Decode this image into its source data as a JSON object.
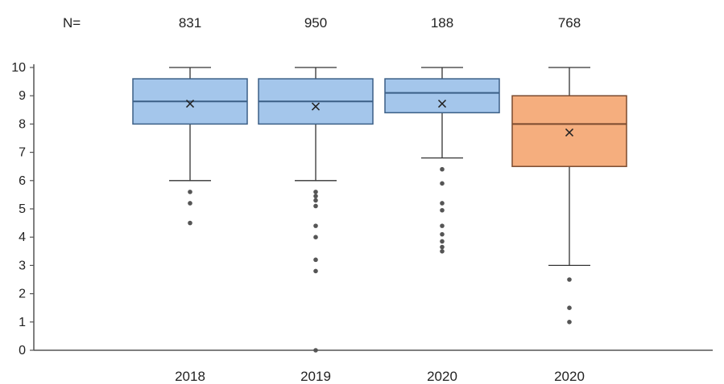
{
  "chart_data": {
    "type": "box",
    "n_prefix": "N=",
    "ylim": [
      0,
      10
    ],
    "yticks": [
      "0",
      "1",
      "2",
      "3",
      "4",
      "5",
      "6",
      "7",
      "8",
      "9",
      "10"
    ],
    "grid": false,
    "categories": [
      "2018",
      "2019",
      "2020",
      "2020"
    ],
    "n_values": [
      "831",
      "950",
      "188",
      "768"
    ],
    "colors": {
      "blue_fill": "#a4c6eb",
      "blue_stroke": "#3b5f86",
      "orange_fill": "#f5ae7e",
      "orange_stroke": "#7a4a2e",
      "axis": "#555555",
      "outlier": "#555555"
    },
    "boxes": [
      {
        "category": "2018",
        "n": 831,
        "whisker_low": 6.0,
        "q1": 8.0,
        "median": 8.8,
        "q3": 9.6,
        "whisker_high": 10.0,
        "mean": 8.72,
        "outliers": [
          5.6,
          5.2,
          4.5
        ],
        "color": "blue"
      },
      {
        "category": "2019",
        "n": 950,
        "whisker_low": 6.0,
        "q1": 8.0,
        "median": 8.8,
        "q3": 9.6,
        "whisker_high": 10.0,
        "mean": 8.62,
        "outliers": [
          5.6,
          5.45,
          5.3,
          5.1,
          4.4,
          4.0,
          3.2,
          2.8,
          0.0
        ],
        "color": "blue"
      },
      {
        "category": "2020",
        "n": 188,
        "whisker_low": 6.8,
        "q1": 8.4,
        "median": 9.1,
        "q3": 9.6,
        "whisker_high": 10.0,
        "mean": 8.72,
        "outliers": [
          6.4,
          5.9,
          5.2,
          4.95,
          4.4,
          4.1,
          3.85,
          3.65,
          3.5
        ],
        "color": "blue"
      },
      {
        "category": "2020",
        "n": 768,
        "whisker_low": 3.0,
        "q1": 6.5,
        "median": 8.0,
        "q3": 9.0,
        "whisker_high": 10.0,
        "mean": 7.7,
        "outliers": [
          2.5,
          1.5,
          1.0
        ],
        "color": "orange"
      }
    ]
  }
}
